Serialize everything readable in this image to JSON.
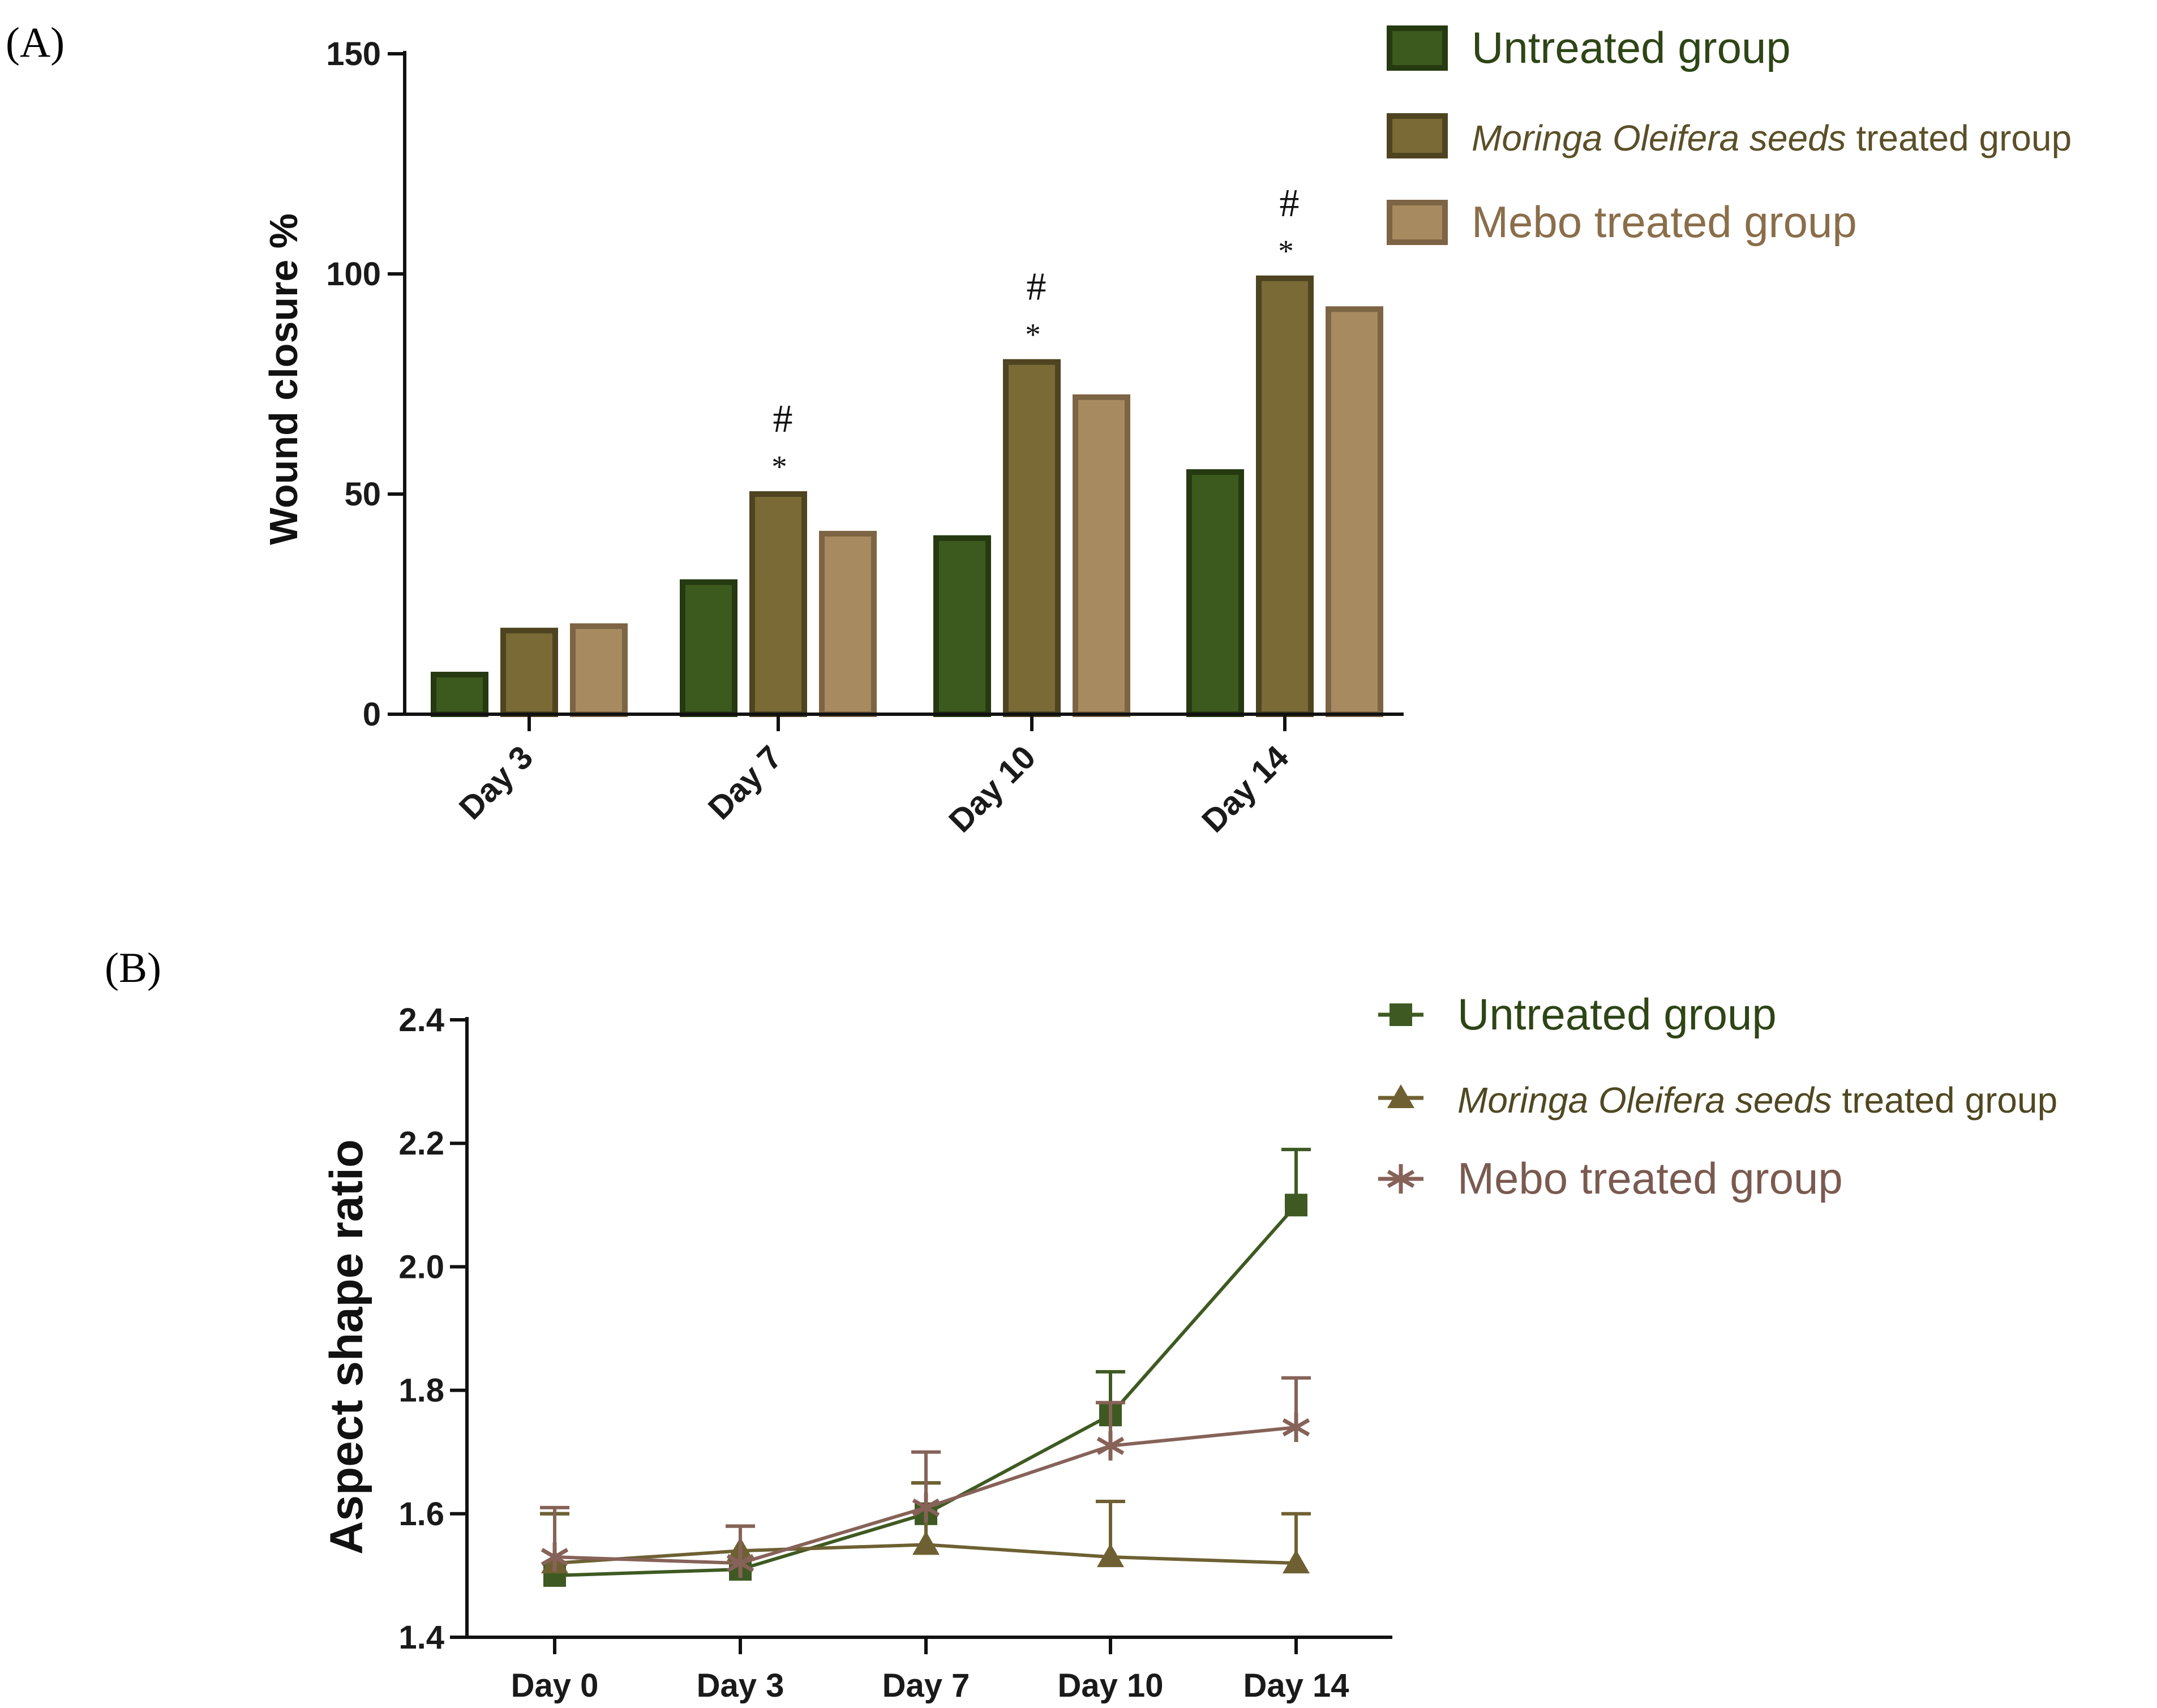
{
  "panels": {
    "a_label": "(A)",
    "b_label": "(B)"
  },
  "legend_suffix": " treated group",
  "chart_data": [
    {
      "type": "bar",
      "ylabel": "Wound closure %",
      "ylim": [
        0,
        150
      ],
      "yticks": [
        0,
        50,
        100,
        150
      ],
      "categories": [
        "Day 3",
        "Day 7",
        "Day 10",
        "Day 14"
      ],
      "series": [
        {
          "name": "Untreated group",
          "values": [
            9,
            30,
            40,
            55
          ],
          "color": "#3d5a1e",
          "edge": "#253a10"
        },
        {
          "name": "Moringa Oleifera seeds treated group",
          "name_italic": "Moringa Oleifera seeds",
          "values": [
            19,
            50,
            80,
            99
          ],
          "color": "#7a6a36",
          "edge": "#4f4420"
        },
        {
          "name": "Mebo treated group",
          "values": [
            20,
            41,
            72,
            92
          ],
          "color": "#a78a5f",
          "edge": "#7d6444"
        }
      ],
      "annotations": [
        {
          "category": "Day 7",
          "symbols": [
            "#",
            "*"
          ]
        },
        {
          "category": "Day 10",
          "symbols": [
            "#",
            "*"
          ]
        },
        {
          "category": "Day 14",
          "symbols": [
            "#",
            "*"
          ]
        }
      ],
      "legend_position": "top-right"
    },
    {
      "type": "line",
      "ylabel": "Aspect shape ratio",
      "ylim": [
        1.4,
        2.4
      ],
      "yticks": [
        "1.4",
        "1.6",
        "1.8",
        "2.0",
        "2.2",
        "2.4"
      ],
      "categories": [
        "Day 0",
        "Day 3",
        "Day 7",
        "Day 10",
        "Day 14"
      ],
      "series": [
        {
          "name": "Untreated group",
          "marker": "square",
          "values": [
            1.5,
            1.51,
            1.6,
            1.76,
            2.1
          ],
          "errors": [
            0.1,
            0.07,
            0.05,
            0.07,
            0.09
          ],
          "color": "#3e5a22"
        },
        {
          "name": "Moringa Oleifera seeds treated group",
          "name_italic": "Moringa Oleifera seeds",
          "marker": "triangle",
          "values": [
            1.52,
            1.54,
            1.55,
            1.53,
            1.52
          ],
          "errors": [
            0.08,
            0.04,
            0.1,
            0.09,
            0.08
          ],
          "color": "#6e6032"
        },
        {
          "name": "Mebo treated group",
          "marker": "star",
          "values": [
            1.53,
            1.52,
            1.61,
            1.71,
            1.74
          ],
          "errors": [
            0.08,
            0.06,
            0.09,
            0.07,
            0.08
          ],
          "color": "#866258"
        }
      ],
      "legend_position": "top-right"
    }
  ]
}
